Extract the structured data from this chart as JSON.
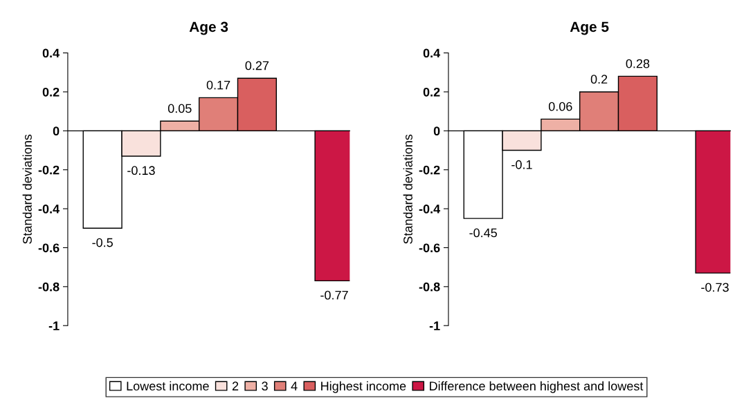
{
  "chart_data": [
    {
      "type": "bar",
      "title": "Age 3",
      "ylabel": "Standard deviations",
      "categories": [
        null
      ],
      "ylim": [
        -1,
        0.4
      ],
      "yticks": [
        -1,
        -0.8,
        -0.6,
        -0.4,
        -0.2,
        0,
        0.2,
        0.4
      ],
      "data_labels": true,
      "legend": "bottom",
      "series": [
        {
          "name": "Lowest income",
          "color": "#ffffff",
          "values": [
            -0.5
          ]
        },
        {
          "name": "2",
          "color": "#f9e1dc",
          "values": [
            -0.13
          ]
        },
        {
          "name": "3",
          "color": "#eeb0a5",
          "values": [
            0.05
          ]
        },
        {
          "name": "4",
          "color": "#e07f78",
          "values": [
            0.17
          ]
        },
        {
          "name": "Highest income",
          "color": "#d95f5f",
          "values": [
            0.27
          ]
        },
        {
          "name": "Difference between highest and lowest",
          "color": "#cc1745",
          "values": [
            -0.77
          ]
        }
      ]
    },
    {
      "type": "bar",
      "title": "Age 5",
      "ylabel": "Standard deviations",
      "categories": [
        null
      ],
      "ylim": [
        -1,
        0.4
      ],
      "yticks": [
        -1,
        -0.8,
        -0.6,
        -0.4,
        -0.2,
        0,
        0.2,
        0.4
      ],
      "data_labels": true,
      "series": [
        {
          "color": "#ffffff",
          "values": [
            -0.45
          ]
        },
        {
          "color": "#f9e1dc",
          "values": [
            -0.1
          ]
        },
        {
          "color": "#eeb0a5",
          "values": [
            0.06
          ]
        },
        {
          "color": "#e07f78",
          "values": [
            0.2
          ]
        },
        {
          "color": "#d95f5f",
          "values": [
            0.28
          ]
        },
        {
          "color": "#cc1745",
          "values": [
            -0.73
          ]
        }
      ]
    }
  ]
}
